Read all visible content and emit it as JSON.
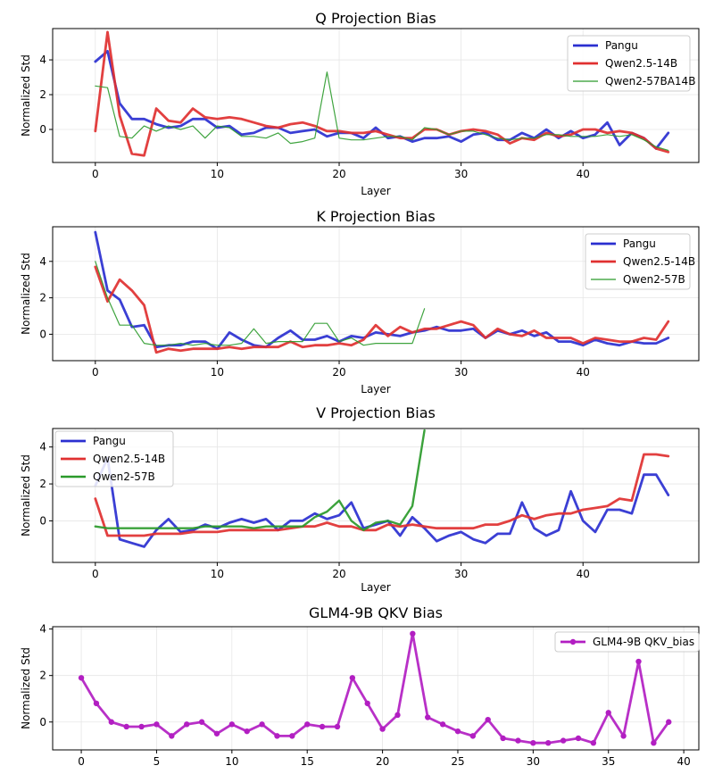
{
  "chart_data": [
    {
      "type": "line",
      "title": "Q Projection Bias",
      "xlabel": "Layer",
      "ylabel": "Normalized Std",
      "xlim": [
        -3.5,
        49.5
      ],
      "ylim": [
        -1.9,
        5.8
      ],
      "xticks": [
        0,
        10,
        20,
        30,
        40
      ],
      "yticks": [
        0,
        2,
        4
      ],
      "grid": true,
      "legend": "top-right",
      "series": [
        {
          "name": "Pangu",
          "color": "#2a2fd0",
          "width": "thick",
          "values": [
            3.9,
            4.5,
            1.5,
            0.6,
            0.6,
            0.3,
            0.1,
            0.2,
            0.6,
            0.6,
            0.1,
            0.2,
            -0.3,
            -0.2,
            0.1,
            0.1,
            -0.2,
            -0.1,
            0.0,
            -0.4,
            -0.2,
            -0.2,
            -0.5,
            0.1,
            -0.5,
            -0.4,
            -0.7,
            -0.5,
            -0.5,
            -0.4,
            -0.7,
            -0.3,
            -0.2,
            -0.6,
            -0.6,
            -0.2,
            -0.5,
            0.0,
            -0.5,
            -0.1,
            -0.5,
            -0.3,
            0.4,
            -0.9,
            -0.2,
            -0.5,
            -1.1,
            -0.2
          ]
        },
        {
          "name": "Qwen2.5-14B",
          "color": "#e03030",
          "width": "thick",
          "values": [
            -0.1,
            5.6,
            0.8,
            -1.4,
            -1.5,
            1.2,
            0.5,
            0.4,
            1.2,
            0.7,
            0.6,
            0.7,
            0.6,
            0.4,
            0.2,
            0.1,
            0.3,
            0.4,
            0.2,
            -0.1,
            -0.1,
            -0.2,
            -0.2,
            -0.1,
            -0.3,
            -0.5,
            -0.5,
            0.0,
            0.0,
            -0.3,
            -0.1,
            0.0,
            -0.1,
            -0.3,
            -0.8,
            -0.5,
            -0.6,
            -0.2,
            -0.4,
            -0.3,
            0.0,
            0.0,
            -0.2,
            -0.1,
            -0.2,
            -0.5,
            -1.1,
            -1.3
          ]
        },
        {
          "name": "Qwen2-57BA14B",
          "color": "#2a9a2a",
          "width": "thin",
          "values": [
            2.5,
            2.4,
            -0.4,
            -0.5,
            0.2,
            -0.1,
            0.2,
            0.0,
            0.2,
            -0.5,
            0.2,
            0.1,
            -0.4,
            -0.4,
            -0.5,
            -0.2,
            -0.8,
            -0.7,
            -0.5,
            3.3,
            -0.5,
            -0.6,
            -0.6,
            -0.5,
            -0.4,
            -0.4,
            -0.6,
            0.1,
            0.0,
            -0.3,
            -0.1,
            -0.1,
            -0.3,
            -0.5,
            -0.6,
            -0.5,
            -0.5,
            -0.3,
            -0.3,
            -0.4,
            -0.4,
            -0.4,
            -0.3,
            -0.4,
            -0.3,
            -0.6,
            -1.0,
            -1.2
          ]
        }
      ]
    },
    {
      "type": "line",
      "title": "K Projection Bias",
      "xlabel": "Layer",
      "ylabel": "Normalized Std",
      "xlim": [
        -3.5,
        49.5
      ],
      "ylim": [
        -1.45,
        5.9
      ],
      "xticks": [
        0,
        10,
        20,
        30,
        40
      ],
      "yticks": [
        0,
        2,
        4
      ],
      "grid": true,
      "legend": "top-right",
      "series": [
        {
          "name": "Pangu",
          "color": "#2a2fd0",
          "width": "thick",
          "values": [
            5.6,
            2.4,
            1.9,
            0.4,
            0.5,
            -0.7,
            -0.6,
            -0.6,
            -0.4,
            -0.4,
            -0.8,
            0.1,
            -0.3,
            -0.6,
            -0.7,
            -0.2,
            0.2,
            -0.3,
            -0.3,
            -0.1,
            -0.4,
            -0.1,
            -0.2,
            0.1,
            0.0,
            -0.1,
            0.1,
            0.2,
            0.4,
            0.2,
            0.2,
            0.3,
            -0.2,
            0.2,
            0.0,
            0.2,
            -0.1,
            0.1,
            -0.4,
            -0.4,
            -0.6,
            -0.3,
            -0.5,
            -0.6,
            -0.4,
            -0.5,
            -0.5,
            -0.2
          ]
        },
        {
          "name": "Qwen2.5-14B",
          "color": "#e03030",
          "width": "thick",
          "values": [
            3.7,
            1.8,
            3.0,
            2.4,
            1.6,
            -1.0,
            -0.8,
            -0.9,
            -0.8,
            -0.8,
            -0.8,
            -0.7,
            -0.8,
            -0.7,
            -0.7,
            -0.7,
            -0.4,
            -0.7,
            -0.6,
            -0.6,
            -0.5,
            -0.6,
            -0.3,
            0.5,
            -0.1,
            0.4,
            0.1,
            0.3,
            0.3,
            0.5,
            0.7,
            0.5,
            -0.2,
            0.3,
            0.0,
            -0.1,
            0.2,
            -0.2,
            -0.2,
            -0.2,
            -0.5,
            -0.2,
            -0.3,
            -0.4,
            -0.4,
            -0.2,
            -0.3,
            0.7
          ]
        },
        {
          "name": "Qwen2-57B",
          "color": "#2a9a2a",
          "width": "thin",
          "values": [
            4.0,
            2.0,
            0.5,
            0.5,
            -0.5,
            -0.6,
            -0.6,
            -0.5,
            -0.6,
            -0.5,
            -0.6,
            -0.6,
            -0.5,
            0.3,
            -0.5,
            -0.4,
            -0.4,
            -0.4,
            0.6,
            0.6,
            -0.4,
            -0.2,
            -0.6,
            -0.5,
            -0.5,
            -0.5,
            -0.5,
            1.4
          ]
        }
      ]
    },
    {
      "type": "line",
      "title": "V Projection Bias",
      "xlabel": "Layer",
      "ylabel": "Normalized Std",
      "xlim": [
        -3.5,
        49.5
      ],
      "ylim": [
        -2.25,
        5.0
      ],
      "xticks": [
        0,
        10,
        20,
        30,
        40
      ],
      "yticks": [
        0,
        2,
        4
      ],
      "grid": true,
      "legend": "top-left",
      "series": [
        {
          "name": "Pangu",
          "color": "#2a2fd0",
          "width": "thick",
          "values": [
            1.9,
            3.4,
            -1.0,
            -1.2,
            -1.4,
            -0.5,
            0.1,
            -0.6,
            -0.5,
            -0.2,
            -0.4,
            -0.1,
            0.1,
            -0.1,
            0.1,
            -0.5,
            0.0,
            0.0,
            0.4,
            0.1,
            0.3,
            1.0,
            -0.4,
            -0.2,
            0.0,
            -0.8,
            0.2,
            -0.4,
            -1.1,
            -0.8,
            -0.6,
            -1.0,
            -1.2,
            -0.7,
            -0.7,
            1.0,
            -0.4,
            -0.8,
            -0.5,
            1.6,
            0.0,
            -0.6,
            0.6,
            0.6,
            0.4,
            2.5,
            2.5,
            1.4
          ]
        },
        {
          "name": "Qwen2.5-14B",
          "color": "#e03030",
          "width": "thick",
          "values": [
            1.2,
            -0.8,
            -0.8,
            -0.8,
            -0.8,
            -0.7,
            -0.7,
            -0.7,
            -0.6,
            -0.6,
            -0.6,
            -0.5,
            -0.5,
            -0.5,
            -0.5,
            -0.5,
            -0.4,
            -0.3,
            -0.3,
            -0.1,
            -0.3,
            -0.3,
            -0.5,
            -0.5,
            -0.2,
            -0.3,
            -0.2,
            -0.3,
            -0.4,
            -0.4,
            -0.4,
            -0.4,
            -0.2,
            -0.2,
            0.0,
            0.3,
            0.1,
            0.3,
            0.4,
            0.4,
            0.6,
            0.7,
            0.8,
            1.2,
            1.1,
            3.6,
            3.6,
            3.5
          ]
        },
        {
          "name": "Qwen2-57B",
          "color": "#2a9a2a",
          "width": "medium",
          "values": [
            -0.3,
            -0.4,
            -0.4,
            -0.4,
            -0.4,
            -0.4,
            -0.4,
            -0.4,
            -0.4,
            -0.3,
            -0.3,
            -0.3,
            -0.3,
            -0.4,
            -0.3,
            -0.3,
            -0.3,
            -0.3,
            0.2,
            0.5,
            1.1,
            0.0,
            -0.5,
            -0.1,
            0.0,
            -0.2,
            0.8,
            4.9
          ]
        }
      ]
    },
    {
      "type": "line",
      "title": "GLM4-9B QKV Bias",
      "xlabel": "",
      "ylabel": "Normalized Std",
      "xlim": [
        -1.9,
        41.0
      ],
      "ylim": [
        -1.2,
        4.1
      ],
      "xticks": [
        0,
        5,
        10,
        15,
        20,
        25,
        30,
        35,
        40
      ],
      "yticks": [
        0,
        2,
        4
      ],
      "grid": true,
      "legend": "top-right",
      "series": [
        {
          "name": "GLM4-9B QKV_bias",
          "color": "#b21ec2",
          "width": "thick",
          "markers": true,
          "values": [
            1.9,
            0.8,
            0.0,
            -0.2,
            -0.2,
            -0.1,
            -0.6,
            -0.1,
            0.0,
            -0.5,
            -0.1,
            -0.4,
            -0.1,
            -0.6,
            -0.6,
            -0.1,
            -0.2,
            -0.2,
            1.9,
            0.8,
            -0.3,
            0.3,
            3.8,
            0.2,
            -0.1,
            -0.4,
            -0.6,
            0.1,
            -0.7,
            -0.8,
            -0.9,
            -0.9,
            -0.8,
            -0.7,
            -0.9,
            0.4,
            -0.6,
            2.6,
            -0.9,
            0.0
          ]
        }
      ]
    }
  ]
}
